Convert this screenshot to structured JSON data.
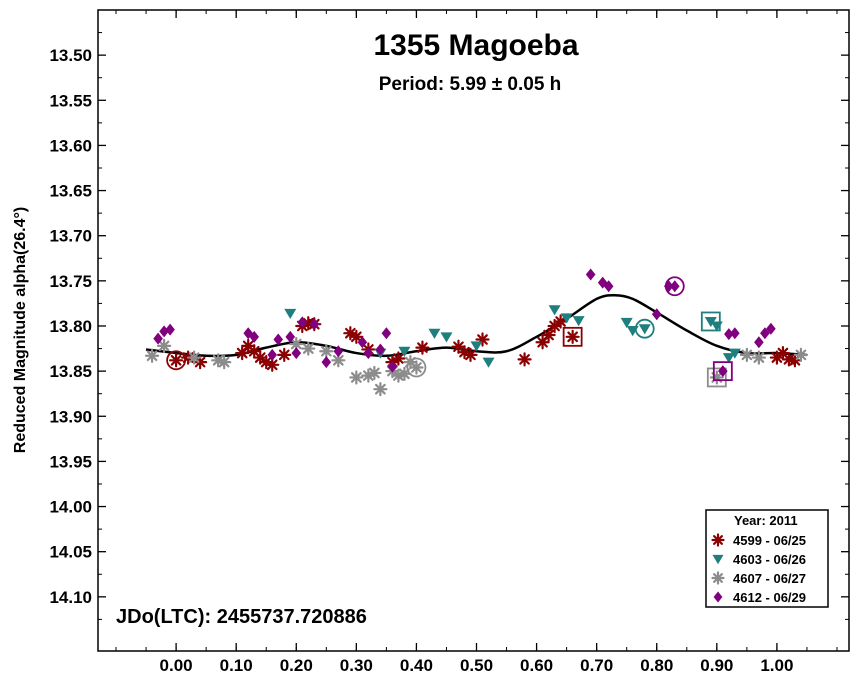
{
  "chart_data": {
    "type": "scatter",
    "title": "1355 Magoeba",
    "subtitle": "Period: 5.99 ± 0.05 h",
    "ylabel": "Reduced Magnitude alpha(26.4°)",
    "xlabel": "",
    "annotation": "JDo(LTC): 2455737.720886",
    "xlim": [
      -0.13,
      1.12
    ],
    "ylim": [
      13.45,
      14.16
    ],
    "y_inverted": true,
    "grid": false,
    "legend_position": "bottom-right",
    "x_ticks": [
      {
        "value": 0.0,
        "label": "0.00"
      },
      {
        "value": 0.1,
        "label": "0.10"
      },
      {
        "value": 0.2,
        "label": "0.20"
      },
      {
        "value": 0.3,
        "label": "0.30"
      },
      {
        "value": 0.4,
        "label": "0.40"
      },
      {
        "value": 0.5,
        "label": "0.50"
      },
      {
        "value": 0.6,
        "label": "0.60"
      },
      {
        "value": 0.7,
        "label": "0.70"
      },
      {
        "value": 0.8,
        "label": "0.80"
      },
      {
        "value": 0.9,
        "label": "0.90"
      },
      {
        "value": 1.0,
        "label": "1.00"
      }
    ],
    "y_ticks": [
      {
        "value": 13.5,
        "label": "13.50"
      },
      {
        "value": 13.55,
        "label": "13.55"
      },
      {
        "value": 13.6,
        "label": "13.60"
      },
      {
        "value": 13.65,
        "label": "13.65"
      },
      {
        "value": 13.7,
        "label": "13.70"
      },
      {
        "value": 13.75,
        "label": "13.75"
      },
      {
        "value": 13.8,
        "label": "13.80"
      },
      {
        "value": 13.85,
        "label": "13.85"
      },
      {
        "value": 13.9,
        "label": "13.90"
      },
      {
        "value": 13.95,
        "label": "13.95"
      },
      {
        "value": 14.0,
        "label": "14.00"
      },
      {
        "value": 14.05,
        "label": "14.05"
      },
      {
        "value": 14.1,
        "label": "14.10"
      }
    ],
    "legend": {
      "title": "Year: 2011"
    },
    "series": [
      {
        "name": "4599 - 06/25",
        "marker": "asterisk",
        "color": "#8b0000",
        "points": [
          [
            0.0,
            13.838
          ],
          [
            0.02,
            13.835
          ],
          [
            0.04,
            13.84
          ],
          [
            0.11,
            13.83
          ],
          [
            0.12,
            13.822
          ],
          [
            0.13,
            13.828
          ],
          [
            0.14,
            13.835
          ],
          [
            0.15,
            13.84
          ],
          [
            0.16,
            13.843
          ],
          [
            0.18,
            13.832
          ],
          [
            0.21,
            13.8
          ],
          [
            0.22,
            13.797
          ],
          [
            0.23,
            13.798
          ],
          [
            0.29,
            13.808
          ],
          [
            0.3,
            13.812
          ],
          [
            0.32,
            13.826
          ],
          [
            0.36,
            13.84
          ],
          [
            0.37,
            13.836
          ],
          [
            0.41,
            13.824
          ],
          [
            0.47,
            13.823
          ],
          [
            0.48,
            13.829
          ],
          [
            0.49,
            13.832
          ],
          [
            0.51,
            13.815
          ],
          [
            0.58,
            13.837
          ],
          [
            0.61,
            13.818
          ],
          [
            0.62,
            13.81
          ],
          [
            0.63,
            13.8
          ],
          [
            0.64,
            13.795
          ],
          [
            0.66,
            13.812
          ],
          [
            1.0,
            13.835
          ],
          [
            1.01,
            13.83
          ],
          [
            1.02,
            13.837
          ],
          [
            1.03,
            13.838
          ]
        ],
        "highlight": [
          [
            0.0,
            13.838
          ],
          [
            0.66,
            13.812
          ]
        ]
      },
      {
        "name": "4603 - 06/26",
        "marker": "triangle-down",
        "color": "#1f7f7f",
        "points": [
          [
            0.19,
            13.786
          ],
          [
            0.34,
            13.83
          ],
          [
            0.38,
            13.828
          ],
          [
            0.43,
            13.808
          ],
          [
            0.45,
            13.812
          ],
          [
            0.5,
            13.822
          ],
          [
            0.52,
            13.84
          ],
          [
            0.63,
            13.782
          ],
          [
            0.65,
            13.791
          ],
          [
            0.67,
            13.794
          ],
          [
            0.75,
            13.796
          ],
          [
            0.76,
            13.805
          ],
          [
            0.78,
            13.803
          ],
          [
            0.89,
            13.795
          ],
          [
            0.9,
            13.8
          ],
          [
            0.92,
            13.835
          ],
          [
            0.93,
            13.83
          ]
        ],
        "highlight": [
          [
            0.78,
            13.803
          ],
          [
            0.89,
            13.795
          ]
        ]
      },
      {
        "name": "4607 - 06/27",
        "marker": "asterisk",
        "color": "#8c8c8c",
        "points": [
          [
            -0.04,
            13.833
          ],
          [
            -0.02,
            13.822
          ],
          [
            0.03,
            13.835
          ],
          [
            0.07,
            13.838
          ],
          [
            0.08,
            13.84
          ],
          [
            0.2,
            13.82
          ],
          [
            0.22,
            13.825
          ],
          [
            0.25,
            13.828
          ],
          [
            0.27,
            13.838
          ],
          [
            0.3,
            13.857
          ],
          [
            0.32,
            13.855
          ],
          [
            0.33,
            13.852
          ],
          [
            0.34,
            13.87
          ],
          [
            0.36,
            13.85
          ],
          [
            0.37,
            13.855
          ],
          [
            0.38,
            13.853
          ],
          [
            0.39,
            13.84
          ],
          [
            0.4,
            13.846
          ],
          [
            0.9,
            13.857
          ],
          [
            0.95,
            13.832
          ],
          [
            0.97,
            13.835
          ],
          [
            1.04,
            13.832
          ]
        ],
        "highlight": [
          [
            0.4,
            13.846
          ],
          [
            0.9,
            13.857
          ]
        ]
      },
      {
        "name": "4612 - 06/29",
        "marker": "diamond",
        "color": "#800080",
        "points": [
          [
            -0.03,
            13.814
          ],
          [
            -0.02,
            13.806
          ],
          [
            -0.01,
            13.804
          ],
          [
            0.12,
            13.808
          ],
          [
            0.13,
            13.812
          ],
          [
            0.16,
            13.832
          ],
          [
            0.17,
            13.815
          ],
          [
            0.19,
            13.812
          ],
          [
            0.2,
            13.83
          ],
          [
            0.21,
            13.796
          ],
          [
            0.23,
            13.798
          ],
          [
            0.25,
            13.84
          ],
          [
            0.27,
            13.828
          ],
          [
            0.31,
            13.818
          ],
          [
            0.32,
            13.83
          ],
          [
            0.34,
            13.826
          ],
          [
            0.35,
            13.808
          ],
          [
            0.36,
            13.845
          ],
          [
            0.69,
            13.743
          ],
          [
            0.71,
            13.752
          ],
          [
            0.72,
            13.756
          ],
          [
            0.8,
            13.787
          ],
          [
            0.82,
            13.756
          ],
          [
            0.83,
            13.756
          ],
          [
            0.91,
            13.85
          ],
          [
            0.92,
            13.809
          ],
          [
            0.93,
            13.808
          ],
          [
            0.97,
            13.818
          ],
          [
            0.98,
            13.808
          ],
          [
            0.99,
            13.803
          ]
        ],
        "highlight": [
          [
            0.83,
            13.756
          ],
          [
            0.91,
            13.85
          ]
        ]
      }
    ],
    "fit_curve": [
      [
        -0.05,
        13.826
      ],
      [
        0.0,
        13.83
      ],
      [
        0.05,
        13.833
      ],
      [
        0.1,
        13.832
      ],
      [
        0.15,
        13.824
      ],
      [
        0.2,
        13.818
      ],
      [
        0.25,
        13.822
      ],
      [
        0.3,
        13.83
      ],
      [
        0.35,
        13.833
      ],
      [
        0.4,
        13.828
      ],
      [
        0.45,
        13.824
      ],
      [
        0.5,
        13.828
      ],
      [
        0.55,
        13.828
      ],
      [
        0.6,
        13.812
      ],
      [
        0.65,
        13.792
      ],
      [
        0.7,
        13.77
      ],
      [
        0.73,
        13.766
      ],
      [
        0.76,
        13.77
      ],
      [
        0.8,
        13.785
      ],
      [
        0.85,
        13.805
      ],
      [
        0.9,
        13.822
      ],
      [
        0.95,
        13.83
      ],
      [
        1.0,
        13.83
      ],
      [
        1.05,
        13.832
      ]
    ]
  }
}
